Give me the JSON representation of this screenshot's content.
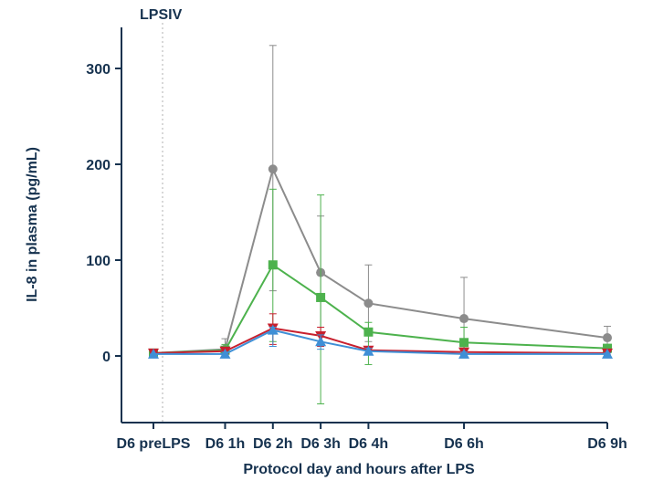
{
  "chart_data": {
    "type": "line",
    "title": "",
    "xlabel": "Protocol day and hours after LPS",
    "ylabel": "IL-8 in plasma (pg/mL)",
    "annotation": "LPSIV",
    "x_hours": [
      -0.5,
      1,
      2,
      3,
      4,
      6,
      9
    ],
    "categories": [
      "D6 preLPS",
      "D6 1h",
      "D6 2h",
      "D6 3h",
      "D6 4h",
      "D6 6h",
      "D6 9h"
    ],
    "y_ticks": [
      0,
      100,
      200,
      300
    ],
    "ylim": [
      -65,
      335
    ],
    "grid": false,
    "series": [
      {
        "color": "#8c8c8c",
        "marker": "circle",
        "values": [
          3,
          7,
          195,
          87,
          55,
          39,
          19
        ],
        "err_upper": [
          3,
          18,
          324,
          146,
          95,
          82,
          31
        ],
        "err_lower": [
          3,
          3,
          68,
          25,
          15,
          2,
          8
        ]
      },
      {
        "color": "#4db24d",
        "marker": "square",
        "values": [
          3,
          6,
          95,
          61,
          25,
          14,
          8
        ],
        "err_upper": [
          3,
          12,
          174,
          168,
          35,
          30,
          12
        ],
        "err_lower": [
          3,
          2,
          15,
          -50,
          -9,
          -2,
          4
        ]
      },
      {
        "color": "#c8202e",
        "marker": "triangle-down",
        "values": [
          3,
          5,
          29,
          21,
          6,
          4,
          3
        ],
        "err_upper": [
          3,
          8,
          44,
          30,
          10,
          7,
          5
        ],
        "err_lower": [
          3,
          2,
          12,
          10,
          2,
          1,
          1
        ]
      },
      {
        "color": "#3f8fd6",
        "marker": "triangle-up",
        "values": [
          2,
          2,
          27,
          15,
          5,
          2,
          2
        ],
        "err_upper": [
          2,
          4,
          30,
          22,
          8,
          4,
          3
        ],
        "err_lower": [
          1,
          1,
          10,
          7,
          1,
          0,
          1
        ]
      }
    ]
  }
}
